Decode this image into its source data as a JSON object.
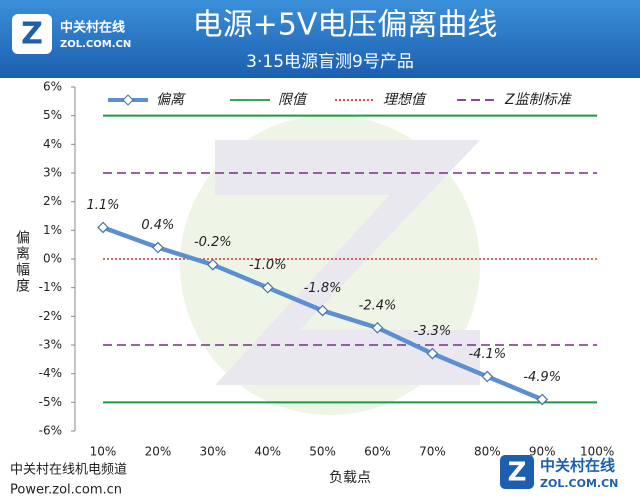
{
  "header": {
    "title": "电源+5V电压偏离曲线",
    "subtitle": "3·15电源盲测9号产品",
    "logo_cn": "中关村在线",
    "logo_en": "ZOL.COM.CN"
  },
  "footer": {
    "channel": "中关村在线机电频道",
    "url": "Power.zol.com.cn",
    "logo_cn": "中关村在线",
    "logo_en": "ZOL.COM.CN"
  },
  "chart_data": {
    "type": "line",
    "y_label": "偏离幅度",
    "x_label": "负载点",
    "categories": [
      "10%",
      "20%",
      "30%",
      "40%",
      "50%",
      "60%",
      "70%",
      "80%",
      "90%",
      "100%"
    ],
    "series": [
      {
        "name": "偏离",
        "color": "#5b8fd0",
        "values": [
          1.1,
          0.4,
          -0.2,
          -1.0,
          -1.8,
          -2.4,
          -3.3,
          -4.1,
          -4.9,
          null
        ],
        "value_labels": [
          "1.1%",
          "0.4%",
          "-0.2%",
          "-1.0%",
          "-1.8%",
          "-2.4%",
          "-3.3%",
          "-4.1%",
          "-4.9%",
          null
        ]
      }
    ],
    "reference_lines": [
      {
        "name": "限值",
        "color": "#1a9c3c",
        "style": "solid",
        "values": [
          5,
          -5
        ]
      },
      {
        "name": "理想值",
        "color": "#e03030",
        "style": "dotted",
        "values": [
          0
        ]
      },
      {
        "name": "Z监制标准",
        "color": "#7a2c8c",
        "style": "dashed",
        "values": [
          3,
          -3
        ]
      }
    ],
    "ylim": [
      -6,
      6
    ],
    "yticks": [
      {
        "value": -6,
        "label": "-6%"
      },
      {
        "value": -5,
        "label": "-5%"
      },
      {
        "value": -4,
        "label": "-4%"
      },
      {
        "value": -3,
        "label": "-3%"
      },
      {
        "value": -2,
        "label": "-2%"
      },
      {
        "value": -1,
        "label": "-1%"
      },
      {
        "value": 0,
        "label": "0%"
      },
      {
        "value": 1,
        "label": "1%"
      },
      {
        "value": 2,
        "label": "2%"
      },
      {
        "value": 3,
        "label": "3%"
      },
      {
        "value": 4,
        "label": "4%"
      },
      {
        "value": 5,
        "label": "5%"
      },
      {
        "value": 6,
        "label": "6%"
      }
    ],
    "legend": "top"
  }
}
